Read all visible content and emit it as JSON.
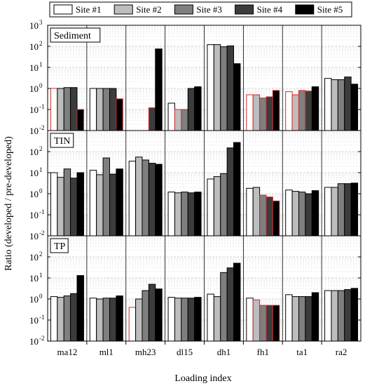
{
  "chart_data": {
    "type": "bar",
    "yscale": "log",
    "ylim": [
      0.01,
      1000
    ],
    "ylabel": "Ratio (developed / pre-developed)",
    "xlabel": "Loading index",
    "categories": [
      "ma12",
      "ml1",
      "mh23",
      "dl15",
      "dh1",
      "fh1",
      "ta1",
      "ra2"
    ],
    "y_ticks": [
      {
        "base": "10",
        "exp": "-2"
      },
      {
        "base": "10",
        "exp": "-1"
      },
      {
        "base": "10",
        "exp": "0"
      },
      {
        "base": "10",
        "exp": "1"
      },
      {
        "base": "10",
        "exp": "2"
      },
      {
        "base": "10",
        "exp": "3"
      }
    ],
    "legend": {
      "position": "top",
      "entries": [
        {
          "name": "Site #1",
          "color": "#ffffff"
        },
        {
          "name": "Site #2",
          "color": "#bdbdbd"
        },
        {
          "name": "Site #3",
          "color": "#7f7f7f"
        },
        {
          "name": "Site #4",
          "color": "#3c3c3c"
        },
        {
          "name": "Site #5",
          "color": "#000000"
        }
      ]
    },
    "panels": [
      {
        "name": "Sediment",
        "series": [
          {
            "name": "Site #1",
            "values": [
              1.0,
              1.0,
              null,
              0.2,
              120,
              0.5,
              0.7,
              3.0
            ]
          },
          {
            "name": "Site #2",
            "values": [
              1.0,
              1.0,
              null,
              0.1,
              120,
              0.5,
              0.5,
              2.6
            ]
          },
          {
            "name": "Site #3",
            "values": [
              1.1,
              1.0,
              null,
              0.1,
              95,
              0.35,
              0.8,
              2.6
            ]
          },
          {
            "name": "Site #4",
            "values": [
              1.1,
              1.0,
              0.12,
              1.0,
              105,
              0.4,
              0.75,
              3.5
            ]
          },
          {
            "name": "Site #5",
            "values": [
              0.1,
              0.32,
              75,
              1.2,
              15,
              0.8,
              1.2,
              1.6
            ]
          }
        ],
        "red_outline": [
          [
            1,
            0,
            0,
            0,
            0,
            1,
            1,
            0
          ],
          [
            0,
            0,
            0,
            1,
            0,
            1,
            1,
            0
          ],
          [
            0,
            0,
            0,
            1,
            0,
            1,
            1,
            0
          ],
          [
            0,
            0,
            1,
            0,
            0,
            1,
            1,
            0
          ],
          [
            1,
            1,
            0,
            0,
            0,
            1,
            0,
            0
          ]
        ]
      },
      {
        "name": "TIN",
        "series": [
          {
            "name": "Site #1",
            "values": [
              10,
              13,
              35,
              1.2,
              5,
              1.8,
              1.5,
              2.0
            ]
          },
          {
            "name": "Site #2",
            "values": [
              6,
              8,
              55,
              1.1,
              6.5,
              2.0,
              1.3,
              2.0
            ]
          },
          {
            "name": "Site #3",
            "values": [
              15,
              50,
              40,
              1.2,
              9,
              0.85,
              1.2,
              3.0
            ]
          },
          {
            "name": "Site #4",
            "values": [
              5.5,
              8.5,
              28,
              1.1,
              150,
              0.7,
              1.0,
              3.0
            ]
          },
          {
            "name": "Site #5",
            "values": [
              10,
              15,
              25,
              1.2,
              270,
              0.45,
              1.4,
              3.2
            ]
          }
        ],
        "red_outline": [
          [
            0,
            0,
            0,
            0,
            0,
            0,
            0,
            0
          ],
          [
            0,
            0,
            0,
            0,
            0,
            0,
            0,
            0
          ],
          [
            0,
            0,
            0,
            0,
            0,
            1,
            0,
            0
          ],
          [
            0,
            0,
            0,
            0,
            0,
            1,
            0,
            0
          ],
          [
            0,
            0,
            0,
            0,
            0,
            1,
            0,
            0
          ]
        ]
      },
      {
        "name": "TP",
        "series": [
          {
            "name": "Site #1",
            "values": [
              1.3,
              1.1,
              0.4,
              1.2,
              1.7,
              1.1,
              1.6,
              2.5
            ]
          },
          {
            "name": "Site #2",
            "values": [
              1.2,
              1.0,
              1.0,
              1.1,
              1.3,
              0.9,
              1.3,
              2.5
            ]
          },
          {
            "name": "Site #3",
            "values": [
              1.4,
              1.1,
              2.5,
              1.1,
              18,
              0.5,
              1.3,
              2.5
            ]
          },
          {
            "name": "Site #4",
            "values": [
              1.8,
              1.1,
              5,
              1.1,
              30,
              0.5,
              1.3,
              2.8
            ]
          },
          {
            "name": "Site #5",
            "values": [
              13,
              1.4,
              3,
              1.2,
              50,
              0.5,
              2.0,
              3.2
            ]
          }
        ],
        "red_outline": [
          [
            0,
            0,
            1,
            0,
            0,
            0,
            0,
            0
          ],
          [
            0,
            0,
            0,
            0,
            0,
            1,
            0,
            0
          ],
          [
            0,
            0,
            0,
            0,
            0,
            1,
            0,
            0
          ],
          [
            0,
            0,
            0,
            0,
            0,
            1,
            0,
            0
          ],
          [
            0,
            0,
            0,
            0,
            0,
            1,
            0,
            0
          ]
        ]
      }
    ],
    "outline_color": "#cc2a2a",
    "grid": true
  }
}
